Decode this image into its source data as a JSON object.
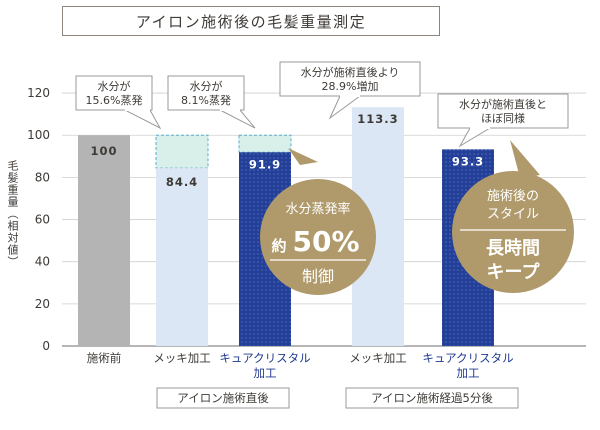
{
  "title": "アイロン施術後の毛髪重量測定",
  "chart_data": {
    "type": "bar",
    "title": "アイロン施術後の毛髪重量測定",
    "ylabel": "毛髪重量（相対値）",
    "ylim": [
      0,
      130
    ],
    "yticks": [
      0,
      20,
      40,
      60,
      80,
      100,
      120
    ],
    "grid": true,
    "categories": [
      {
        "lines": [
          "施術前"
        ],
        "highlight": false
      },
      {
        "lines": [
          "メッキ加工"
        ],
        "highlight": false
      },
      {
        "lines": [
          "キュアクリスタル",
          "加工"
        ],
        "highlight": true
      },
      {
        "lines": [
          "メッキ加工"
        ],
        "highlight": false
      },
      {
        "lines": [
          "キュアクリスタル",
          "加工"
        ],
        "highlight": true
      }
    ],
    "values": [
      100,
      84.4,
      91.9,
      113.3,
      93.3
    ],
    "value_labels": [
      "100",
      "84.4",
      "91.9",
      "113.3",
      "93.3"
    ],
    "group_labels": [
      {
        "text": "アイロン施術直後",
        "from": 1,
        "to": 2
      },
      {
        "text": "アイロン施術経過5分後",
        "from": 3,
        "to": 4
      }
    ],
    "annotations": [
      {
        "lines": [
          "水分が",
          "15.6%蒸発"
        ],
        "bar": 1
      },
      {
        "lines": [
          "水分が",
          "8.1%蒸発"
        ],
        "bar": 2
      },
      {
        "lines": [
          "水分が施術直後より",
          "28.9%増加"
        ],
        "bar": 3
      },
      {
        "lines": [
          "水分が施術直後と",
          "ほぼ同様"
        ],
        "bar": 4
      }
    ]
  },
  "badges": [
    {
      "top": "水分蒸発率",
      "mid_prefix": "約",
      "mid_number": "50%",
      "bottom": "制御"
    },
    {
      "top": "施術後の",
      "top2": "スタイル",
      "bottom1": "長時間",
      "bottom2": "キープ"
    }
  ],
  "colors": {
    "gray_bar": "#b4b4b4",
    "light_bar": "#dbe7f5",
    "navy_bar": "#233f97",
    "evaporated": "#d9efe9",
    "evaporated_border": "#5aaed0",
    "badge": "#b09a6b",
    "label_navy": "#1f3a8f"
  }
}
